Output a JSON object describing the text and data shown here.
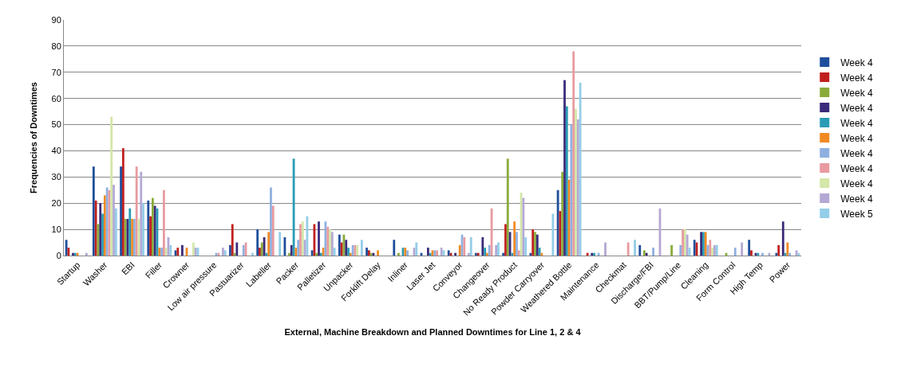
{
  "chart_data": {
    "type": "bar",
    "xlabel": "External, Machine Breakdown and Planned Downtimes for Line 1, 2 & 4",
    "ylabel": "Frequencies of Downtimes",
    "categories": [
      "Startup",
      "Washer",
      "EBI",
      "Filler",
      "Crowner",
      "Low air pressure",
      "Pastuarizer",
      "Labeller",
      "Packer",
      "Palletizer",
      "Unpacker",
      "Forklift Delay",
      "Inliner",
      "Laser Jet",
      "Conveyor",
      "Changeover",
      "No Ready Product",
      "Powder Carryover",
      "Weathered Bottle",
      "Maintenance",
      "Checkmat",
      "Discharge/FBI",
      "BBT/Pump/Line",
      "Cleaning",
      "Form Control",
      "High Temp",
      "Power"
    ],
    "series": [
      {
        "name": "Week 4",
        "color": "#1f4e9c",
        "values": [
          6,
          34,
          34,
          21,
          2,
          0,
          4,
          10,
          7,
          2,
          8,
          3,
          6,
          1,
          2,
          1,
          1,
          1,
          25,
          0,
          0,
          4,
          0,
          6,
          0,
          6,
          1
        ]
      },
      {
        "name": "Week 4",
        "color": "#c0201e",
        "values": [
          3,
          21,
          41,
          15,
          3,
          0,
          12,
          3,
          0,
          12,
          5,
          2,
          0,
          0,
          1,
          1,
          12,
          10,
          17,
          1,
          0,
          0,
          0,
          5,
          0,
          2,
          4
        ]
      },
      {
        "name": "Week 4",
        "color": "#8aab3a",
        "values": [
          0,
          12,
          14,
          22,
          0,
          0,
          1,
          5,
          1,
          1,
          8,
          1,
          1,
          0,
          0,
          0,
          37,
          9,
          32,
          0,
          0,
          2,
          4,
          0,
          1,
          0,
          0
        ]
      },
      {
        "name": "Week 4",
        "color": "#3b2a7a",
        "values": [
          1,
          20,
          14,
          19,
          4,
          0,
          5,
          7,
          4,
          13,
          6,
          1,
          0,
          3,
          1,
          7,
          9,
          8,
          67,
          1,
          0,
          1,
          0,
          9,
          0,
          1,
          13
        ]
      },
      {
        "name": "Week 4",
        "color": "#2a9bb5",
        "values": [
          1,
          16,
          18,
          18,
          0,
          0,
          0,
          1,
          37,
          1,
          3,
          0,
          3,
          1,
          0,
          3,
          1,
          3,
          57,
          1,
          0,
          0,
          0,
          9,
          0,
          1,
          1
        ]
      },
      {
        "name": "Week 4",
        "color": "#f08a24",
        "values": [
          1,
          23,
          14,
          3,
          3,
          0,
          0,
          9,
          3,
          3,
          1,
          2,
          3,
          2,
          4,
          1,
          13,
          1,
          29,
          0,
          0,
          0,
          0,
          9,
          0,
          0,
          5
        ]
      },
      {
        "name": "Week 4",
        "color": "#8fb0e0",
        "values": [
          0,
          26,
          14,
          3,
          0,
          1,
          4,
          26,
          6,
          13,
          4,
          0,
          2,
          2,
          8,
          4,
          9,
          0,
          50,
          1,
          0,
          3,
          4,
          4,
          3,
          1,
          1
        ]
      },
      {
        "name": "Week 4",
        "color": "#e89aa0",
        "values": [
          0,
          25,
          34,
          25,
          0,
          1,
          5,
          19,
          12,
          11,
          4,
          0,
          0,
          2,
          7,
          18,
          2,
          0,
          78,
          0,
          5,
          0,
          10,
          6,
          0,
          0,
          0
        ]
      },
      {
        "name": "Week 4",
        "color": "#d4e6a8",
        "values": [
          0,
          53,
          14,
          3,
          5,
          0,
          0,
          0,
          13,
          10,
          4,
          0,
          0,
          0,
          0,
          0,
          24,
          0,
          56,
          0,
          0,
          0,
          10,
          3,
          0,
          0,
          0
        ]
      },
      {
        "name": "Week 4",
        "color": "#b4a8d4",
        "values": [
          1,
          27,
          32,
          7,
          3,
          3,
          0,
          0,
          6,
          9,
          0,
          0,
          3,
          3,
          1,
          4,
          22,
          0,
          52,
          5,
          0,
          18,
          8,
          4,
          5,
          1,
          2
        ]
      },
      {
        "name": "Week 5",
        "color": "#93cde8",
        "values": [
          0,
          18,
          20,
          4,
          3,
          2,
          1,
          9,
          15,
          3,
          6,
          0,
          5,
          2,
          7,
          5,
          7,
          16,
          66,
          0,
          6,
          0,
          3,
          4,
          0,
          0,
          1
        ]
      }
    ],
    "ylim": [
      0,
      90
    ],
    "yticks": [
      0,
      10,
      20,
      30,
      40,
      50,
      60,
      70,
      80,
      90
    ],
    "grid": "y",
    "legend": "right"
  }
}
